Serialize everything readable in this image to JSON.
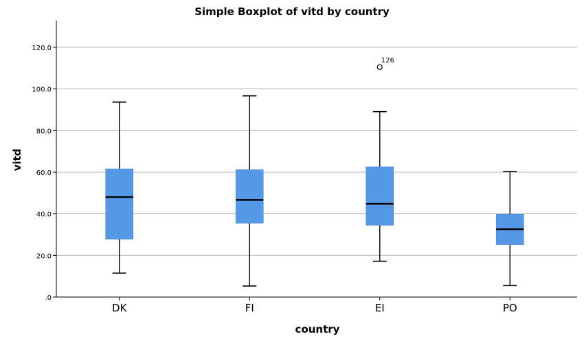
{
  "chart_data": {
    "type": "boxplot",
    "title": "Simple Boxplot of vitd by country",
    "xlabel": "country",
    "ylabel": "vitd",
    "ylim": [
      0,
      132
    ],
    "yticks": [
      0,
      20,
      40,
      60,
      80,
      100,
      120
    ],
    "ytick_labels": [
      ".0",
      "20.0",
      "40.0",
      "60.0",
      "80.0",
      "100.0",
      "120.0"
    ],
    "grid": "horizontal",
    "box_color": "#5598e6",
    "categories": [
      "DK",
      "FI",
      "EI",
      "PO"
    ],
    "boxes": [
      {
        "category": "DK",
        "min": 11.5,
        "q1": 27.8,
        "median": 48.0,
        "q3": 61.6,
        "max": 93.7
      },
      {
        "category": "FI",
        "min": 5.3,
        "q1": 35.5,
        "median": 46.7,
        "q3": 61.2,
        "max": 96.7
      },
      {
        "category": "EI",
        "min": 17.2,
        "q1": 34.5,
        "median": 44.8,
        "q3": 62.6,
        "max": 89.1
      },
      {
        "category": "PO",
        "min": 5.5,
        "q1": 25.2,
        "median": 32.6,
        "q3": 39.8,
        "max": 60.3
      }
    ],
    "outliers": [
      {
        "category": "EI",
        "value": 110.5,
        "label": "126"
      }
    ]
  }
}
